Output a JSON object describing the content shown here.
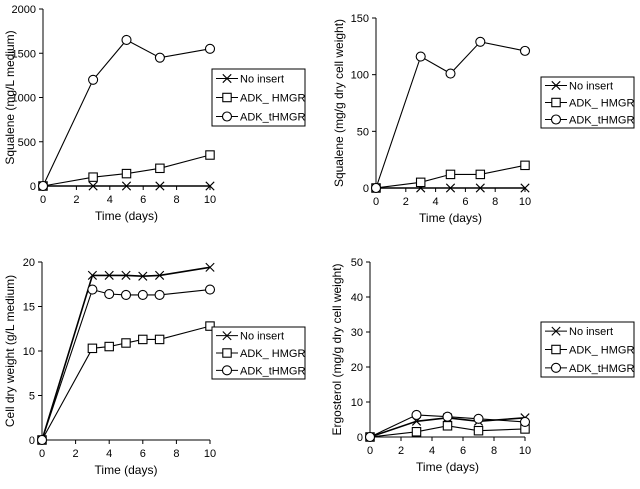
{
  "chart_data": [
    {
      "type": "line",
      "xlabel": "Time (days)",
      "ylabel": "Squalene (mg/L medium)",
      "xlim": [
        0,
        10
      ],
      "ylim": [
        0,
        2000
      ],
      "xticks": [
        0,
        2,
        4,
        6,
        8,
        10
      ],
      "yticks": [
        0,
        500,
        1000,
        1500,
        2000
      ],
      "legend_position": "right",
      "grid": false,
      "series": [
        {
          "name": "No insert",
          "marker": "x",
          "x": [
            0,
            3,
            5,
            7,
            10
          ],
          "y": [
            0,
            0,
            0,
            0,
            0
          ]
        },
        {
          "name": "ADK_ HMGR",
          "marker": "square",
          "x": [
            0,
            3,
            5,
            7,
            10
          ],
          "y": [
            0,
            100,
            140,
            200,
            350
          ]
        },
        {
          "name": "ADK_tHMGR",
          "marker": "circle",
          "x": [
            0,
            3,
            5,
            7,
            10
          ],
          "y": [
            0,
            1200,
            1650,
            1450,
            1550
          ]
        }
      ]
    },
    {
      "type": "line",
      "xlabel": "Time (days)",
      "ylabel": "Squalene (mg/g dry cell weight)",
      "xlim": [
        0,
        10
      ],
      "ylim": [
        0,
        150
      ],
      "xticks": [
        0,
        2,
        4,
        6,
        8,
        10
      ],
      "yticks": [
        0,
        50,
        100,
        150
      ],
      "legend_position": "right",
      "grid": false,
      "series": [
        {
          "name": "No insert",
          "marker": "x",
          "x": [
            0,
            3,
            5,
            7,
            10
          ],
          "y": [
            0,
            0,
            0,
            0,
            0
          ]
        },
        {
          "name": "ADK_ HMGR",
          "marker": "square",
          "x": [
            0,
            3,
            5,
            7,
            10
          ],
          "y": [
            0,
            5,
            12,
            12,
            20
          ]
        },
        {
          "name": "ADK_tHMGR",
          "marker": "circle",
          "x": [
            0,
            3,
            5,
            7,
            10
          ],
          "y": [
            0,
            116,
            101,
            129,
            121
          ]
        }
      ]
    },
    {
      "type": "line",
      "xlabel": "Time (days)",
      "ylabel": "Cell dry weight (g/L medium)",
      "xlim": [
        0,
        10
      ],
      "ylim": [
        0,
        20
      ],
      "xticks": [
        0,
        2,
        4,
        6,
        8,
        10
      ],
      "yticks": [
        0,
        5,
        10,
        15,
        20
      ],
      "legend_position": "right",
      "grid": false,
      "series": [
        {
          "name": "No insert",
          "marker": "x",
          "x": [
            0,
            3,
            4,
            5,
            6,
            7,
            10
          ],
          "y": [
            0,
            18.5,
            18.5,
            18.5,
            18.4,
            18.5,
            19.4
          ]
        },
        {
          "name": "ADK_ HMGR",
          "marker": "square",
          "x": [
            0,
            3,
            4,
            5,
            6,
            7,
            10
          ],
          "y": [
            0,
            10.3,
            10.5,
            10.9,
            11.3,
            11.3,
            12.8
          ]
        },
        {
          "name": "ADK_tHMGR",
          "marker": "circle",
          "x": [
            0,
            3,
            4,
            5,
            6,
            7,
            10
          ],
          "y": [
            0,
            16.9,
            16.4,
            16.3,
            16.3,
            16.3,
            16.9
          ]
        }
      ]
    },
    {
      "type": "line",
      "xlabel": "Time (days)",
      "ylabel": "Ergosterol (mg/g dry cell weight)",
      "xlim": [
        0,
        10
      ],
      "ylim": [
        0,
        50
      ],
      "xticks": [
        0,
        2,
        4,
        6,
        8,
        10
      ],
      "yticks": [
        0,
        10,
        20,
        30,
        40,
        50
      ],
      "legend_position": "right",
      "grid": false,
      "series": [
        {
          "name": "No insert",
          "marker": "x",
          "x": [
            0,
            3,
            5,
            7,
            10
          ],
          "y": [
            0,
            4.5,
            5.5,
            4.5,
            5.5
          ]
        },
        {
          "name": "ADK_ HMGR",
          "marker": "square",
          "x": [
            0,
            3,
            5,
            7,
            10
          ],
          "y": [
            0,
            1.5,
            3.2,
            1.8,
            2.3
          ]
        },
        {
          "name": "ADK_tHMGR",
          "marker": "circle",
          "x": [
            0,
            3,
            5,
            7,
            10
          ],
          "y": [
            0,
            6.3,
            5.8,
            5.2,
            4.3
          ]
        }
      ]
    }
  ]
}
